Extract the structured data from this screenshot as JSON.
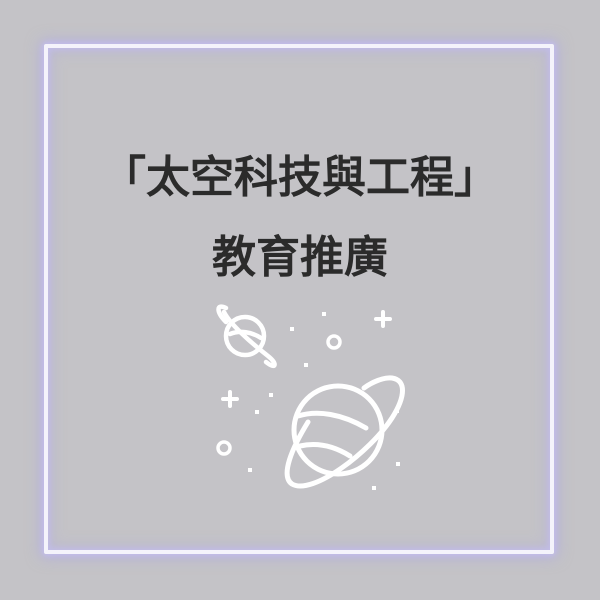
{
  "title": {
    "line1": "「太空科技與工程」",
    "line2": "教育推廣"
  },
  "illustration": {
    "icons": [
      "planet-icon",
      "planet-icon",
      "star-icon",
      "sparkle-icon"
    ]
  },
  "colors": {
    "background": "#c4c3c7",
    "frame": "#f4f3fb",
    "frame_glow": "#aca6e6",
    "text": "#2b2b2b",
    "icon_stroke": "#ffffff"
  }
}
